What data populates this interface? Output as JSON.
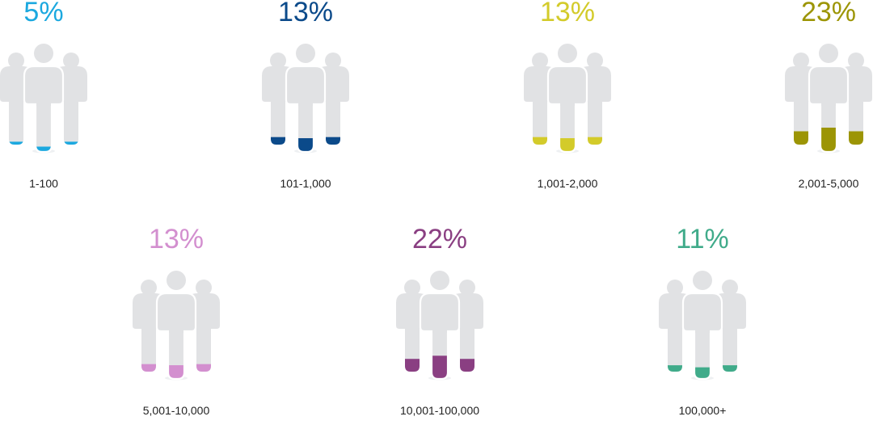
{
  "chart_data": {
    "type": "pictogram",
    "silhouette_color": "#e1e2e4",
    "categories": [
      "1-100",
      "101-1,000",
      "1,001-2,000",
      "2,001-5,000",
      "5,001-10,000",
      "10,001-100,000",
      "100,000+"
    ],
    "values": [
      5,
      13,
      13,
      23,
      13,
      22,
      11
    ],
    "labels": [
      "5%",
      "13%",
      "13%",
      "23%",
      "13%",
      "22%",
      "11%"
    ],
    "colors": [
      "#1ba8df",
      "#0b4a8a",
      "#d3cb2a",
      "#9c9505",
      "#d38fcf",
      "#8a3f82",
      "#40ab8a"
    ]
  }
}
